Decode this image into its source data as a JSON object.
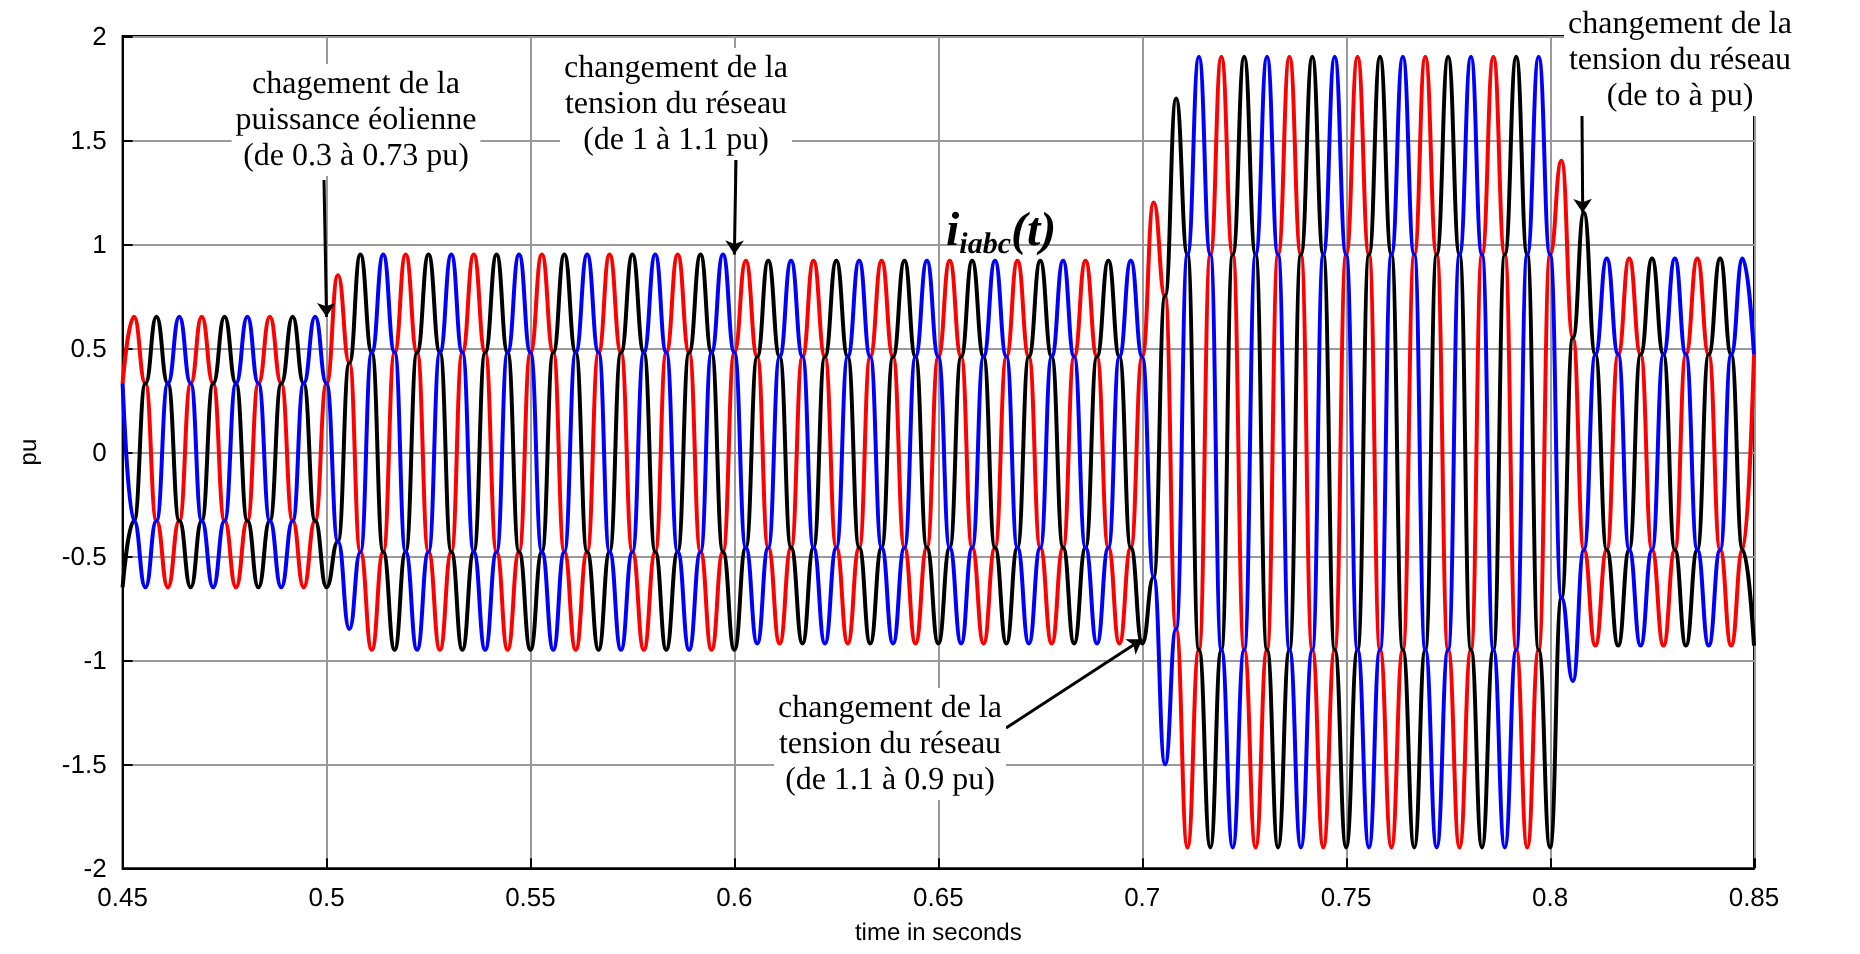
{
  "chart_data": {
    "type": "line",
    "title": "i$_{iabc}$(t)",
    "xlabel": "time in seconds",
    "ylabel": "pu",
    "x": [
      0.45,
      0.4528,
      0.4556,
      0.4583,
      0.4611,
      0.4639,
      0.4667,
      0.4694,
      0.4722,
      0.475,
      0.4778,
      0.4806,
      0.4833,
      0.4861,
      0.4889,
      0.4917,
      0.4944,
      0.4972,
      0.5,
      0.5028,
      0.5056,
      0.5083,
      0.5111,
      0.5139,
      0.5167,
      0.5194,
      0.5222,
      0.525,
      0.5278,
      0.5306,
      0.5333,
      0.5361,
      0.5389,
      0.5417,
      0.5444,
      0.5472,
      0.55,
      0.5528,
      0.5556,
      0.5583,
      0.5611,
      0.5639,
      0.5667,
      0.5694,
      0.5722,
      0.575,
      0.5778,
      0.5806,
      0.5833,
      0.5861,
      0.5889,
      0.5917,
      0.5944,
      0.5972,
      0.6,
      0.6028,
      0.6056,
      0.6083,
      0.6111,
      0.6139,
      0.6167,
      0.6194,
      0.6222,
      0.625,
      0.6278,
      0.6306,
      0.6333,
      0.6361,
      0.6389,
      0.6417,
      0.6444,
      0.6472,
      0.65,
      0.6528,
      0.6556,
      0.6583,
      0.6611,
      0.6639,
      0.6667,
      0.6694,
      0.6722,
      0.675,
      0.6778,
      0.6806,
      0.6833,
      0.6861,
      0.6889,
      0.6917,
      0.6944,
      0.6972,
      0.7,
      0.7028,
      0.7056,
      0.7083,
      0.7111,
      0.7139,
      0.7167,
      0.7194,
      0.7222,
      0.725,
      0.7278,
      0.7306,
      0.7333,
      0.7361,
      0.7389,
      0.7417,
      0.7444,
      0.7472,
      0.75,
      0.7528,
      0.7556,
      0.7583,
      0.7611,
      0.7639,
      0.7667,
      0.7694,
      0.7722,
      0.775,
      0.7778,
      0.7806,
      0.7833,
      0.7861,
      0.7889,
      0.7917,
      0.7944,
      0.7972,
      0.8,
      0.8028,
      0.8056,
      0.8083,
      0.8111,
      0.8139,
      0.8167,
      0.8194,
      0.8222,
      0.825,
      0.8278,
      0.8306,
      0.8333,
      0.8361,
      0.8389,
      0.8417,
      0.8444,
      0.8472,
      0.85
    ],
    "series": [
      {
        "color": "#ff0000",
        "values": [
          0.33,
          0.65,
          0.33,
          -0.33,
          -0.65,
          -0.33,
          0.33,
          0.65,
          0.33,
          -0.33,
          -0.65,
          -0.33,
          0.33,
          0.65,
          0.33,
          -0.33,
          -0.65,
          -0.33,
          0.33,
          0.85,
          0.43,
          -0.48,
          -0.95,
          -0.48,
          0.48,
          0.95,
          0.48,
          -0.48,
          -0.95,
          -0.48,
          0.48,
          0.95,
          0.48,
          -0.48,
          -0.95,
          -0.48,
          0.48,
          0.95,
          0.48,
          -0.48,
          -0.95,
          -0.48,
          0.48,
          0.95,
          0.48,
          -0.48,
          -0.95,
          -0.48,
          0.48,
          0.95,
          0.48,
          -0.48,
          -0.95,
          -0.48,
          0.48,
          0.92,
          0.46,
          -0.46,
          -0.92,
          -0.46,
          0.46,
          0.92,
          0.46,
          -0.46,
          -0.92,
          -0.46,
          0.46,
          0.92,
          0.46,
          -0.46,
          -0.92,
          -0.46,
          0.46,
          0.92,
          0.46,
          -0.46,
          -0.92,
          -0.46,
          0.46,
          0.92,
          0.46,
          -0.46,
          -0.92,
          -0.46,
          0.46,
          0.92,
          0.46,
          -0.46,
          -0.92,
          -0.46,
          0.46,
          1.2,
          0.75,
          -0.85,
          -1.9,
          -0.95,
          0.95,
          1.9,
          0.95,
          -0.95,
          -1.9,
          -0.95,
          0.95,
          1.9,
          0.95,
          -0.95,
          -1.9,
          -0.95,
          0.95,
          1.9,
          0.95,
          -0.95,
          -1.9,
          -0.95,
          0.95,
          1.9,
          0.95,
          -0.95,
          -1.9,
          -0.95,
          0.95,
          1.9,
          0.95,
          -0.95,
          -1.9,
          -0.95,
          0.95,
          1.4,
          0.55,
          -0.47,
          -0.93,
          -0.47,
          0.47,
          0.93,
          0.47,
          -0.47,
          -0.93,
          -0.47,
          0.47,
          0.93,
          0.47,
          -0.47,
          -0.93,
          -0.47,
          0.47
        ]
      },
      {
        "color": "#000000",
        "values": [
          -0.65,
          -0.33,
          0.33,
          0.65,
          0.33,
          -0.33,
          -0.65,
          -0.33,
          0.33,
          0.65,
          0.33,
          -0.33,
          -0.65,
          -0.33,
          0.33,
          0.65,
          0.33,
          -0.33,
          -0.65,
          -0.43,
          0.43,
          0.95,
          0.48,
          -0.48,
          -0.95,
          -0.48,
          0.48,
          0.95,
          0.48,
          -0.48,
          -0.95,
          -0.48,
          0.48,
          0.95,
          0.48,
          -0.48,
          -0.95,
          -0.48,
          0.48,
          0.95,
          0.48,
          -0.48,
          -0.95,
          -0.48,
          0.48,
          0.95,
          0.48,
          -0.48,
          -0.95,
          -0.48,
          0.48,
          0.95,
          0.48,
          -0.48,
          -0.95,
          -0.46,
          0.46,
          0.92,
          0.46,
          -0.46,
          -0.92,
          -0.46,
          0.46,
          0.92,
          0.46,
          -0.46,
          -0.92,
          -0.46,
          0.46,
          0.92,
          0.46,
          -0.46,
          -0.92,
          -0.46,
          0.46,
          0.92,
          0.46,
          -0.46,
          -0.92,
          -0.46,
          0.46,
          0.92,
          0.46,
          -0.46,
          -0.92,
          -0.46,
          0.46,
          0.92,
          0.46,
          -0.46,
          -0.92,
          -0.6,
          0.75,
          1.7,
          0.95,
          -0.95,
          -1.9,
          -0.95,
          0.95,
          1.9,
          0.95,
          -0.95,
          -1.9,
          -0.95,
          0.95,
          1.9,
          0.95,
          -0.95,
          -1.9,
          -0.95,
          0.95,
          1.9,
          0.95,
          -0.95,
          -1.9,
          -0.95,
          0.95,
          1.9,
          0.95,
          -0.95,
          -1.9,
          -0.95,
          0.95,
          1.9,
          0.95,
          -0.95,
          -1.9,
          -0.7,
          0.55,
          1.15,
          0.47,
          -0.47,
          -0.93,
          -0.47,
          0.47,
          0.93,
          0.47,
          -0.47,
          -0.93,
          -0.47,
          0.47,
          0.93,
          0.47,
          -0.47,
          -0.93
        ]
      },
      {
        "color": "#0000ff",
        "values": [
          0.33,
          -0.33,
          -0.65,
          -0.33,
          0.33,
          0.65,
          0.33,
          -0.33,
          -0.65,
          -0.33,
          0.33,
          0.65,
          0.33,
          -0.33,
          -0.65,
          -0.33,
          0.33,
          0.65,
          0.33,
          -0.43,
          -0.85,
          -0.48,
          0.48,
          0.95,
          0.48,
          -0.48,
          -0.95,
          -0.48,
          0.48,
          0.95,
          0.48,
          -0.48,
          -0.95,
          -0.48,
          0.48,
          0.95,
          0.48,
          -0.48,
          -0.95,
          -0.48,
          0.48,
          0.95,
          0.48,
          -0.48,
          -0.95,
          -0.48,
          0.48,
          0.95,
          0.48,
          -0.48,
          -0.95,
          -0.48,
          0.48,
          0.95,
          0.48,
          -0.46,
          -0.92,
          -0.46,
          0.46,
          0.92,
          0.46,
          -0.46,
          -0.92,
          -0.46,
          0.46,
          0.92,
          0.46,
          -0.46,
          -0.92,
          -0.46,
          0.46,
          0.92,
          0.46,
          -0.46,
          -0.92,
          -0.46,
          0.46,
          0.92,
          0.46,
          -0.46,
          -0.92,
          -0.46,
          0.46,
          0.92,
          0.46,
          -0.46,
          -0.92,
          -0.46,
          0.46,
          0.92,
          0.46,
          -0.6,
          -1.5,
          -0.85,
          0.95,
          1.9,
          0.95,
          -0.95,
          -1.9,
          -0.95,
          0.95,
          1.9,
          0.95,
          -0.95,
          -1.9,
          -0.95,
          0.95,
          1.9,
          0.95,
          -0.95,
          -1.9,
          -0.95,
          0.95,
          1.9,
          0.95,
          -0.95,
          -1.9,
          -0.95,
          0.95,
          1.9,
          0.95,
          -0.95,
          -1.9,
          -0.95,
          0.95,
          1.9,
          0.95,
          -0.7,
          -1.1,
          -0.47,
          0.47,
          0.93,
          0.47,
          -0.47,
          -0.93,
          -0.47,
          0.47,
          0.93,
          0.47,
          -0.47,
          -0.93,
          -0.47,
          0.47,
          0.93,
          0.47
        ]
      }
    ],
    "xlim": [
      0.45,
      0.85
    ],
    "xticks": [
      0.45,
      0.5,
      0.55,
      0.6,
      0.65,
      0.7,
      0.75,
      0.8,
      0.85
    ],
    "ylim": [
      -2,
      2
    ],
    "yticks": [
      -2,
      -1.5,
      -1,
      -0.5,
      0,
      0.5,
      1,
      1.5,
      2
    ],
    "grid": true,
    "annotations": [
      {
        "text": "chagement de la\npuissance éolienne\n(de 0.3 à 0.73 pu)",
        "x": 0.5,
        "y": 0.65
      },
      {
        "text": "changement de la\ntension du réseau\n(de 1 à 1.1 pu)",
        "x": 0.6,
        "y": 0.95
      },
      {
        "text": "changement de la\ntension du réseau\n(de 1.1 à 0.9 pu)",
        "x": 0.7,
        "y": -0.9
      },
      {
        "text": "changement de la\ntension du réseau\n(de to à pu)",
        "x": 0.808,
        "y": 1.15
      }
    ]
  }
}
